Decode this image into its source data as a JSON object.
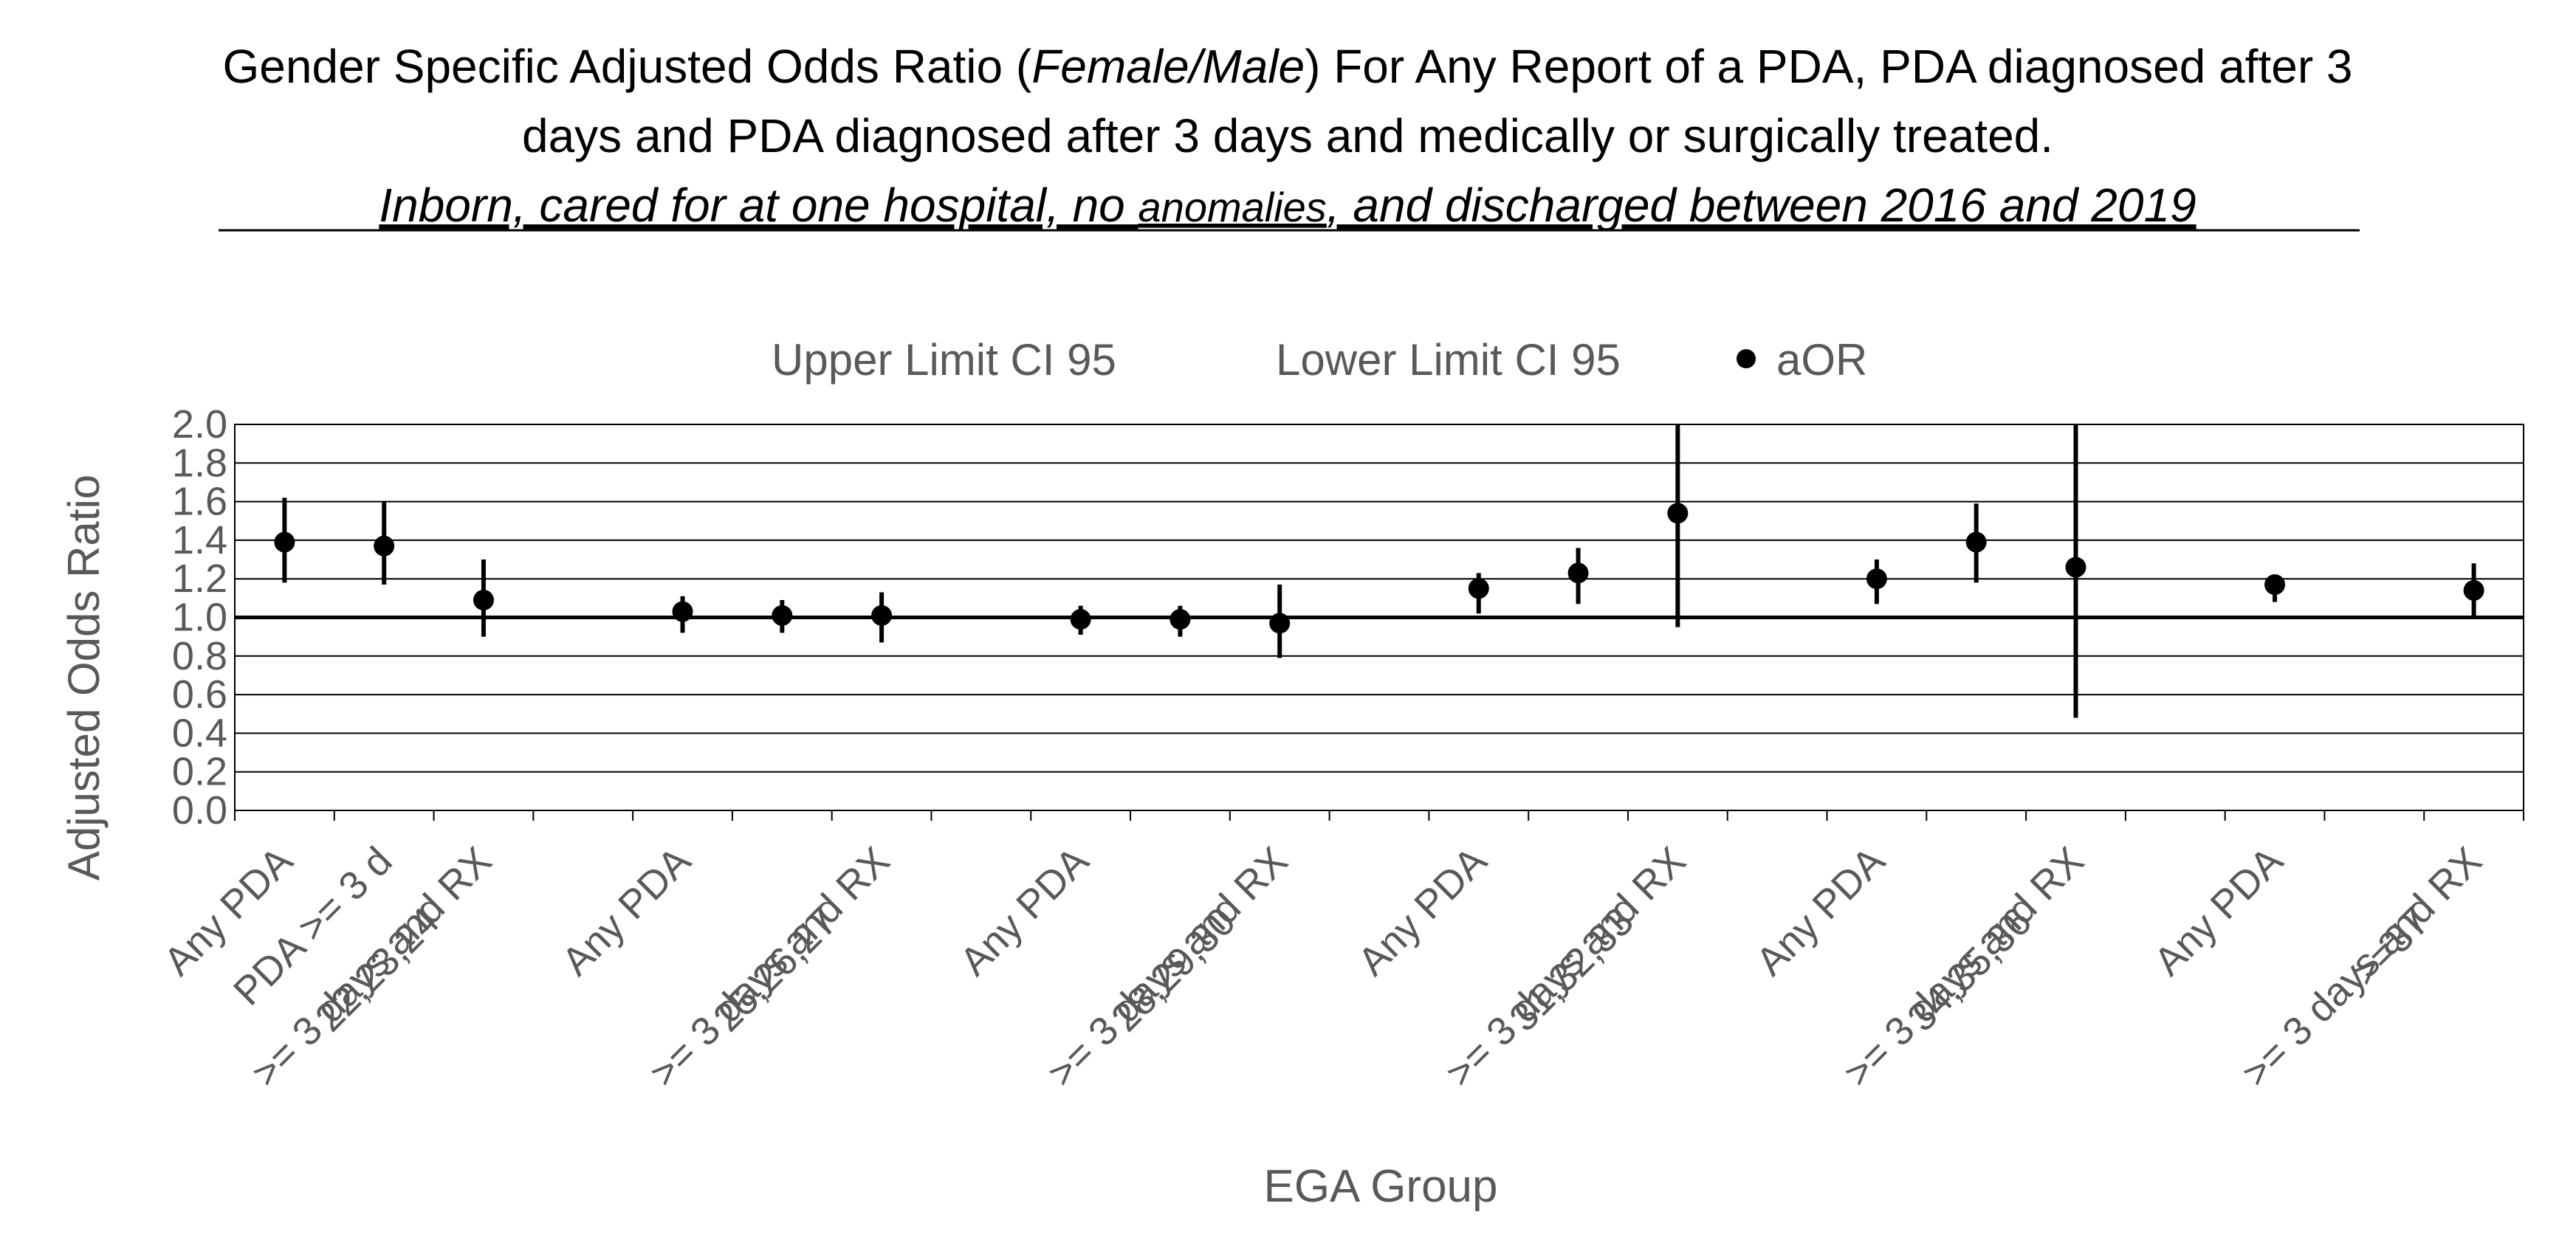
{
  "chart_data": {
    "type": "scatter",
    "title": {
      "line1_pre": "Gender Specific Adjusted Odds Ratio (",
      "line1_italic": "Female/Male",
      "line1_post": ") For Any Report of a PDA, PDA diagnosed after 3",
      "line2": "days and PDA diagnosed after 3 days and medically or surgically treated.",
      "line3_a": "Inborn, cared for at one hospital, no ",
      "line3_b": "anomalies",
      "line3_c": ", and discharged between 2016 and 2019"
    },
    "xlabel": "EGA Group",
    "ylabel": "Adjusted Odds Ratio",
    "ylim": [
      0,
      2
    ],
    "yticks": [
      "0.0",
      "0.2",
      "0.4",
      "0.6",
      "0.8",
      "1.0",
      "1.2",
      "1.4",
      "1.6",
      "1.8",
      "2.0"
    ],
    "reference_line": 1.0,
    "grid": true,
    "legend_position": "top",
    "legend": [
      "Upper Limit CI 95",
      "Lower Limit CI 95",
      "aOR"
    ],
    "groups": [
      {
        "name": "22,23,24",
        "categories": [
          "Any PDA",
          "PDA >= 3 d",
          ">= 3 days and RX"
        ],
        "aor": [
          1.39,
          1.37,
          1.09
        ],
        "lower": [
          1.18,
          1.17,
          0.9
        ],
        "upper": [
          1.62,
          1.6,
          1.3
        ]
      },
      {
        "name": "25,26,27",
        "categories": [
          "Any PDA",
          "",
          ">= 3 days and RX"
        ],
        "aor": [
          1.03,
          1.01,
          1.01
        ],
        "lower": [
          0.92,
          0.92,
          0.87
        ],
        "upper": [
          1.11,
          1.09,
          1.13
        ]
      },
      {
        "name": "28,29,30",
        "categories": [
          "Any PDA",
          "",
          ">= 3 days and RX"
        ],
        "aor": [
          0.99,
          0.99,
          0.97
        ],
        "lower": [
          0.91,
          0.9,
          0.79
        ],
        "upper": [
          1.06,
          1.06,
          1.17
        ]
      },
      {
        "name": "31,32,33",
        "categories": [
          "Any PDA",
          "",
          ">= 3 days and RX"
        ],
        "aor": [
          1.15,
          1.23,
          1.54
        ],
        "lower": [
          1.02,
          1.07,
          0.95
        ],
        "upper": [
          1.23,
          1.36,
          2.0
        ]
      },
      {
        "name": "34,35,36",
        "categories": [
          "Any PDA",
          "",
          ">= 3 days and RX"
        ],
        "aor": [
          1.2,
          1.39,
          1.26
        ],
        "lower": [
          1.07,
          1.18,
          0.48
        ],
        "upper": [
          1.3,
          1.59,
          2.0
        ]
      },
      {
        "name": ">=37",
        "categories": [
          "Any PDA",
          "",
          ">= 3 days and RX"
        ],
        "aor": [
          1.17,
          null,
          1.14
        ],
        "lower": [
          1.08,
          null,
          1.0
        ],
        "upper": [
          1.2,
          null,
          1.28
        ]
      }
    ]
  }
}
